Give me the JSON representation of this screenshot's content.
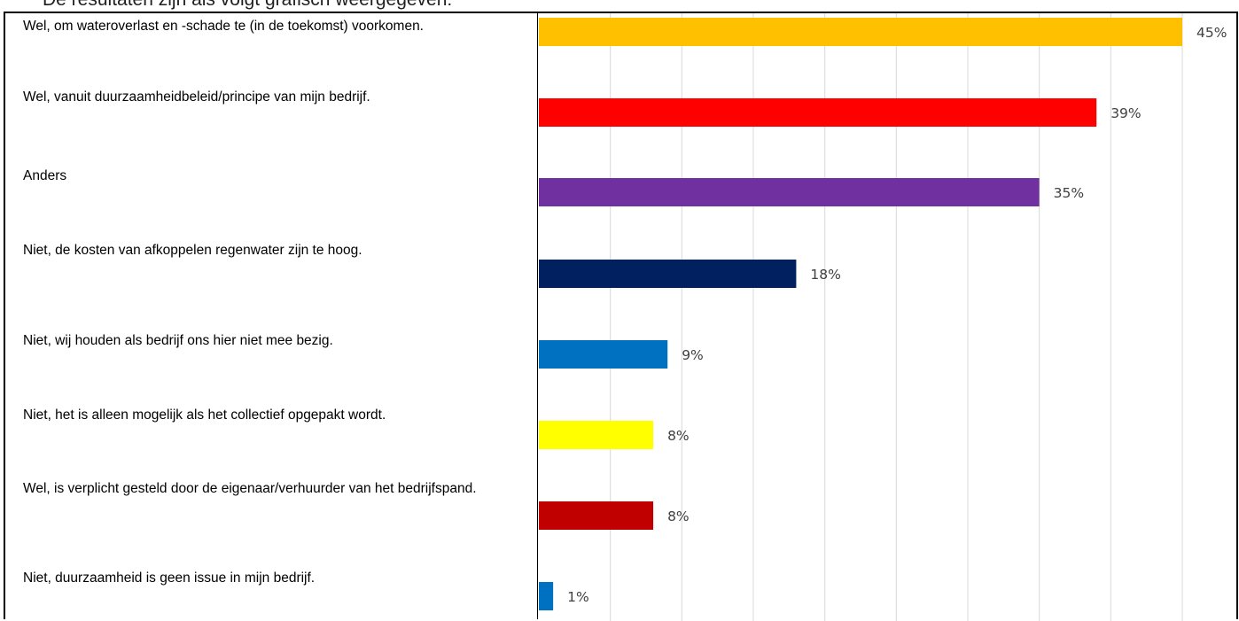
{
  "intro_text": "De resultaten zijn als volgt grafisch weergegeven:",
  "chart_data": {
    "type": "bar",
    "orientation": "horizontal",
    "title": "",
    "xlabel": "",
    "ylabel": "",
    "xlim": [
      0,
      45
    ],
    "grid": true,
    "legend": "none",
    "categories": [
      "Wel, om wateroverlast en -schade te (in de toekomst) voorkomen.",
      "Wel, vanuit duurzaamheidbeleid/principe van mijn bedrijf.",
      "Anders",
      "Niet, de kosten van afkoppelen regenwater zijn te hoog.",
      "Niet, wij houden als bedrijf ons hier niet mee bezig.",
      "Niet, het is alleen mogelijk als het collectief opgepakt wordt.",
      "Wel, is verplicht gesteld door de eigenaar/verhuurder van het bedrijfspand.",
      "Niet, duurzaamheid is geen issue in mijn bedrijf."
    ],
    "values": [
      45,
      39,
      35,
      18,
      9,
      8,
      8,
      1
    ],
    "value_labels": [
      "45%",
      "39%",
      "35%",
      "18%",
      "9%",
      "8%",
      "8%",
      "1%"
    ],
    "colors": [
      "#FFC000",
      "#FF0000",
      "#7030A0",
      "#002060",
      "#0070C0",
      "#FFFF00",
      "#C00000",
      "#0070C0"
    ]
  }
}
